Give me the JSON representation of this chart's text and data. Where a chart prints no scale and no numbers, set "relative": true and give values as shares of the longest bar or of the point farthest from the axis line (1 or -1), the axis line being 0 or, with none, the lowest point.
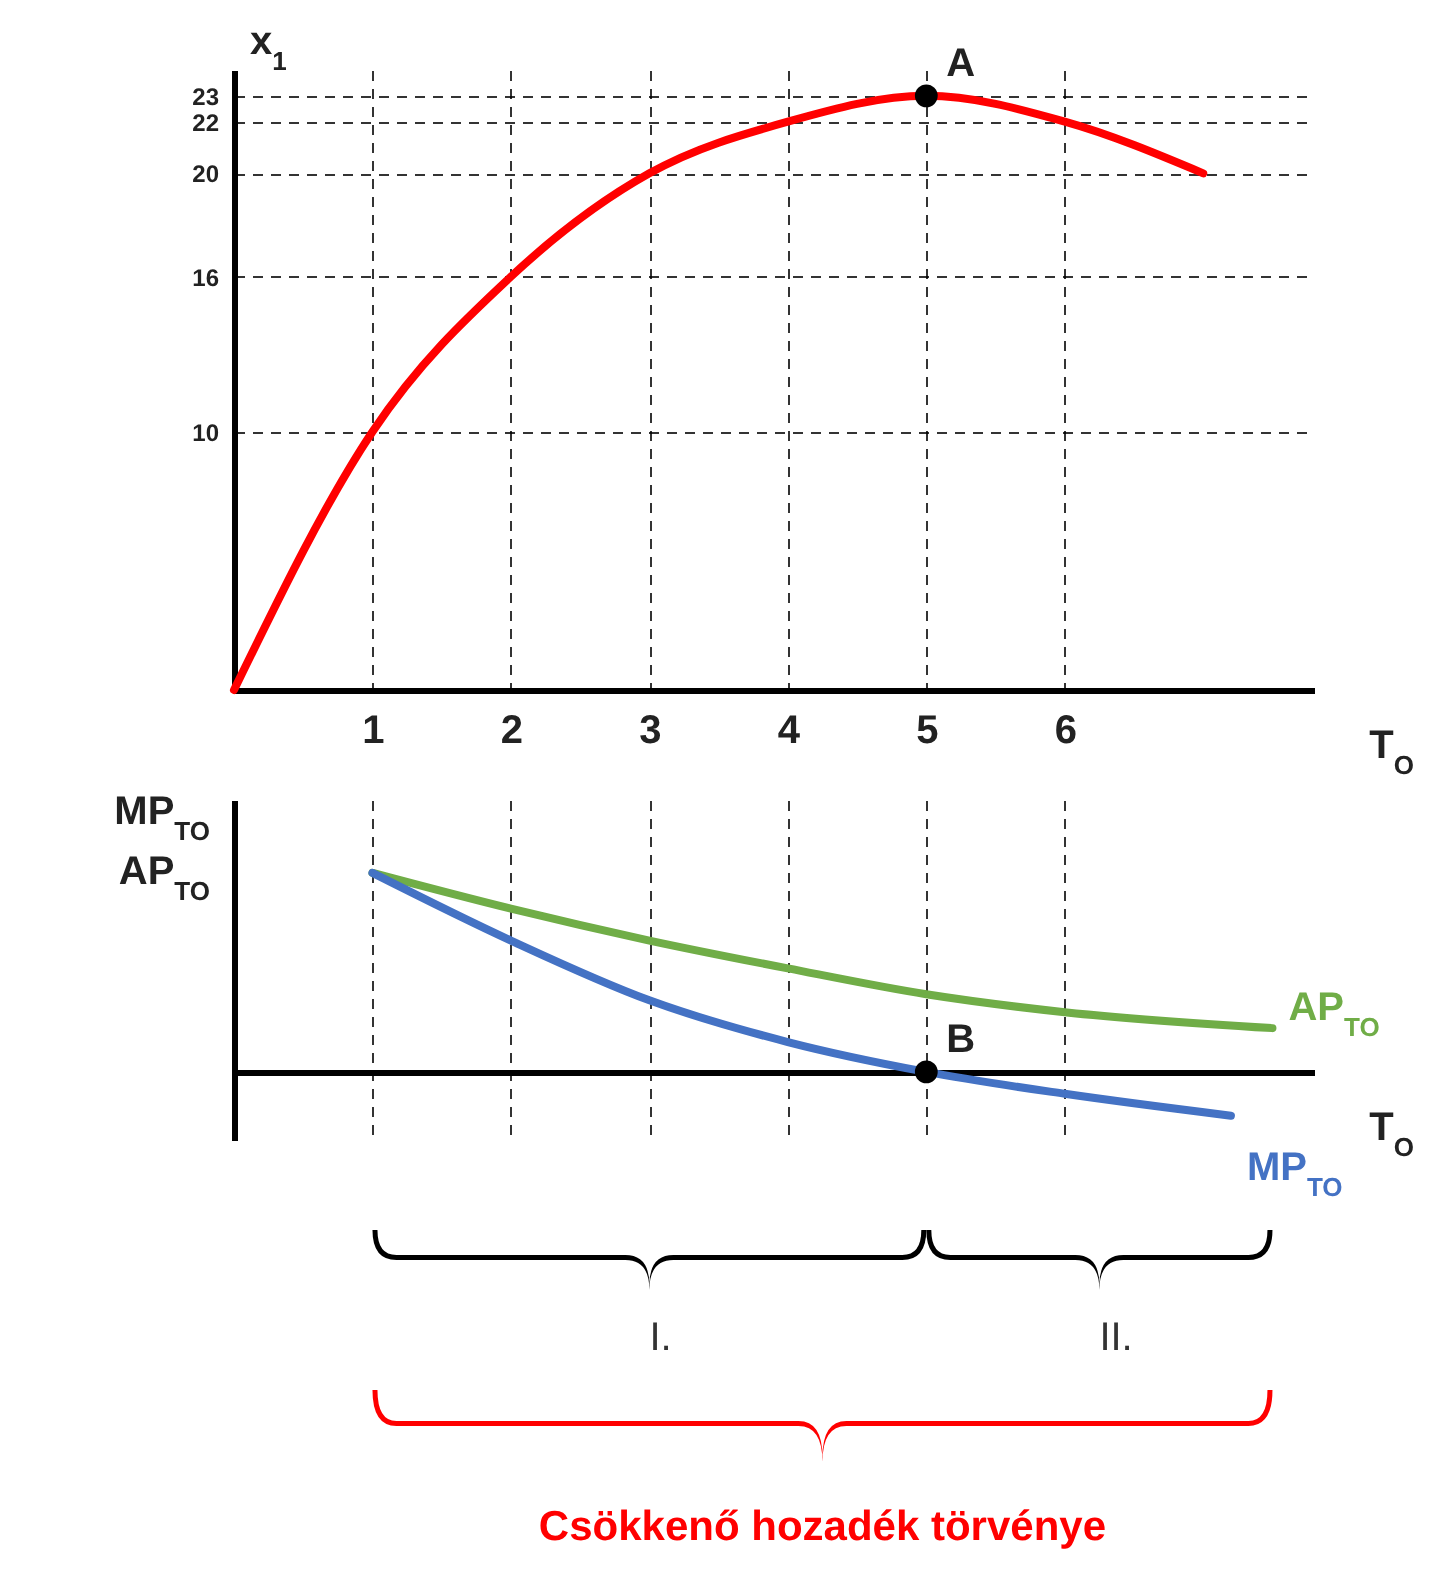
{
  "chart_data": [
    {
      "type": "line",
      "xlabel": "T$_{O}$",
      "ylabel": "x$_{1}$",
      "x": [
        0,
        1,
        2,
        3,
        4,
        5,
        6,
        7
      ],
      "xlim": [
        0,
        7.8
      ],
      "xticks": [
        1,
        2,
        3,
        4,
        5,
        6
      ],
      "ylim": [
        0,
        24
      ],
      "yticks": [
        10,
        16,
        20,
        22,
        23
      ],
      "grid": true,
      "series": [
        {
          "color": "#ff0000",
          "values": [
            0,
            10,
            16,
            20,
            22,
            23,
            22,
            20
          ]
        },
        {
          "type": "scatter",
          "x": [
            5
          ],
          "values": [
            23
          ],
          "color": "#000000",
          "marker": "circle"
        }
      ],
      "annotations": [
        {
          "text": "A",
          "x": 5,
          "y": 23
        }
      ]
    },
    {
      "type": "line",
      "relative": true,
      "xlabel": "T$_{O}$",
      "ylabel": "MP$_{TO}$\nAP$_{TO}$",
      "xlim": [
        0,
        7.8
      ],
      "xticks": [
        1,
        2,
        3,
        4,
        5,
        6
      ],
      "tick_labels": false,
      "grid": "x",
      "series": [
        {
          "name": "AP$_{TO}$",
          "color": "#70ad47",
          "x": [
            1,
            2,
            3,
            4,
            5,
            6,
            7.5
          ],
          "values": [
            1,
            0.82,
            0.66,
            0.52,
            0.39,
            0.3,
            0.22
          ]
        },
        {
          "name": "MP$_{TO}$",
          "color": "#4472c4",
          "x": [
            1,
            2,
            3,
            4,
            5,
            6,
            7.2
          ],
          "values": [
            1,
            0.66,
            0.36,
            0.15,
            0,
            -0.11,
            -0.22
          ]
        },
        {
          "type": "scatter",
          "x": [
            5
          ],
          "values": [
            0
          ],
          "color": "#000000",
          "marker": "circle"
        }
      ],
      "annotations": [
        {
          "text": "B",
          "x": 5,
          "y": 0
        },
        "I.",
        "II.",
        "Csökkenő hozadék törvénye"
      ]
    }
  ]
}
